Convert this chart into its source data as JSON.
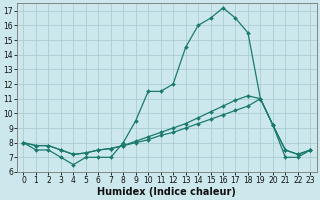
{
  "xlabel": "Humidex (Indice chaleur)",
  "bg_color": "#cce8ec",
  "grid_color": "#aacdd4",
  "line_color": "#1a7a6e",
  "x_values": [
    0,
    1,
    2,
    3,
    4,
    5,
    6,
    7,
    8,
    9,
    10,
    11,
    12,
    13,
    14,
    15,
    16,
    17,
    18,
    19,
    20,
    21,
    22,
    23
  ],
  "line1": [
    8.0,
    7.5,
    7.5,
    7.0,
    6.5,
    7.0,
    7.0,
    7.0,
    8.0,
    9.5,
    11.5,
    11.5,
    12.0,
    14.5,
    16.0,
    16.5,
    17.2,
    16.5,
    15.5,
    11.0,
    9.2,
    7.0,
    7.0,
    7.5
  ],
  "line2": [
    8.0,
    7.8,
    7.8,
    7.5,
    7.2,
    7.3,
    7.5,
    7.6,
    7.8,
    8.1,
    8.4,
    8.7,
    9.0,
    9.3,
    9.7,
    10.1,
    10.5,
    10.9,
    11.2,
    11.0,
    9.2,
    7.5,
    7.2,
    7.5
  ],
  "line3": [
    8.0,
    7.8,
    7.8,
    7.5,
    7.2,
    7.3,
    7.5,
    7.6,
    7.8,
    8.0,
    8.2,
    8.5,
    8.7,
    9.0,
    9.3,
    9.6,
    9.9,
    10.2,
    10.5,
    11.0,
    9.2,
    7.5,
    7.2,
    7.5
  ],
  "xlim": [
    -0.5,
    23.5
  ],
  "ylim": [
    6.0,
    17.5
  ],
  "yticks": [
    6,
    7,
    8,
    9,
    10,
    11,
    12,
    13,
    14,
    15,
    16,
    17
  ],
  "xticks": [
    0,
    1,
    2,
    3,
    4,
    5,
    6,
    7,
    8,
    9,
    10,
    11,
    12,
    13,
    14,
    15,
    16,
    17,
    18,
    19,
    20,
    21,
    22,
    23
  ],
  "xlabel_fontsize": 7,
  "tick_fontsize": 5.5,
  "linewidth": 0.9,
  "markersize": 2.0
}
